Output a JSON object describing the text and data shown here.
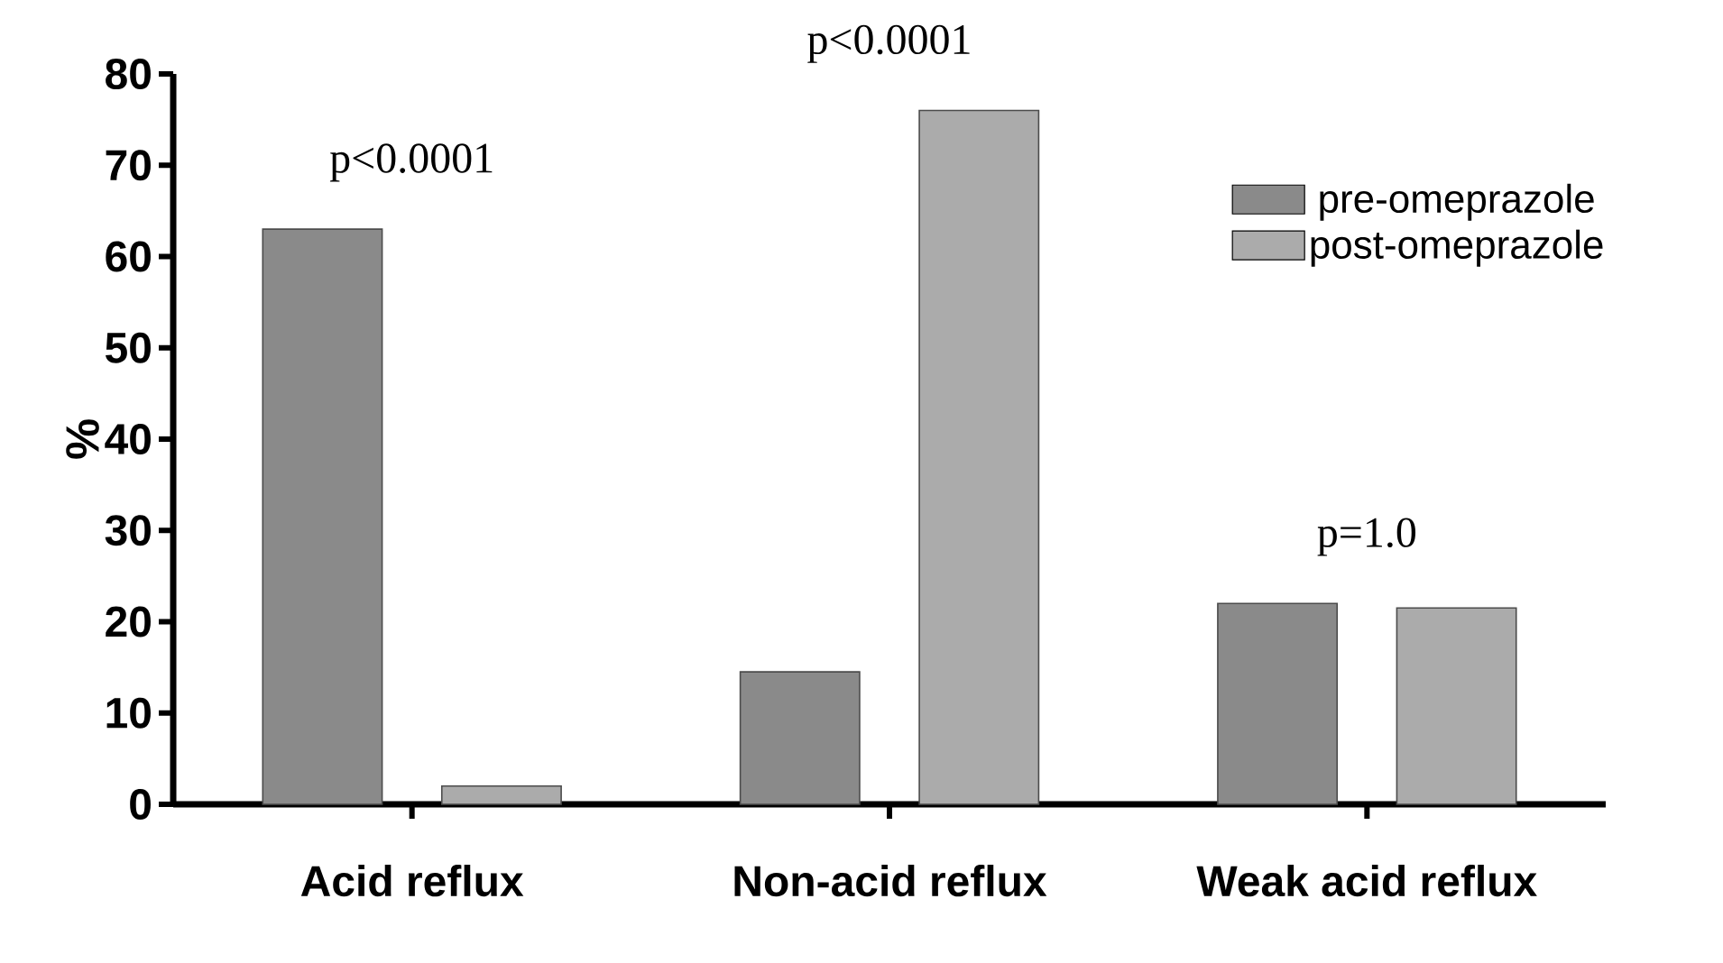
{
  "chart_data": {
    "type": "bar",
    "ylabel": "%",
    "categories": [
      "Acid reflux",
      "Non-acid reflux",
      "Weak acid reflux"
    ],
    "series": [
      {
        "name": "pre-omeprazole",
        "color": "#8a8a8a",
        "values": [
          63,
          14.5,
          22
        ]
      },
      {
        "name": "post-omeprazole",
        "color": "#ababab",
        "values": [
          2,
          76,
          21.5
        ]
      }
    ],
    "ylim": [
      0,
      80
    ],
    "yticks": [
      0,
      10,
      20,
      30,
      40,
      50,
      60,
      70,
      80
    ],
    "legend": "top right",
    "grid": false,
    "annotations": [
      "p<0.0001",
      "p<0.0001",
      "p=1.0"
    ]
  }
}
